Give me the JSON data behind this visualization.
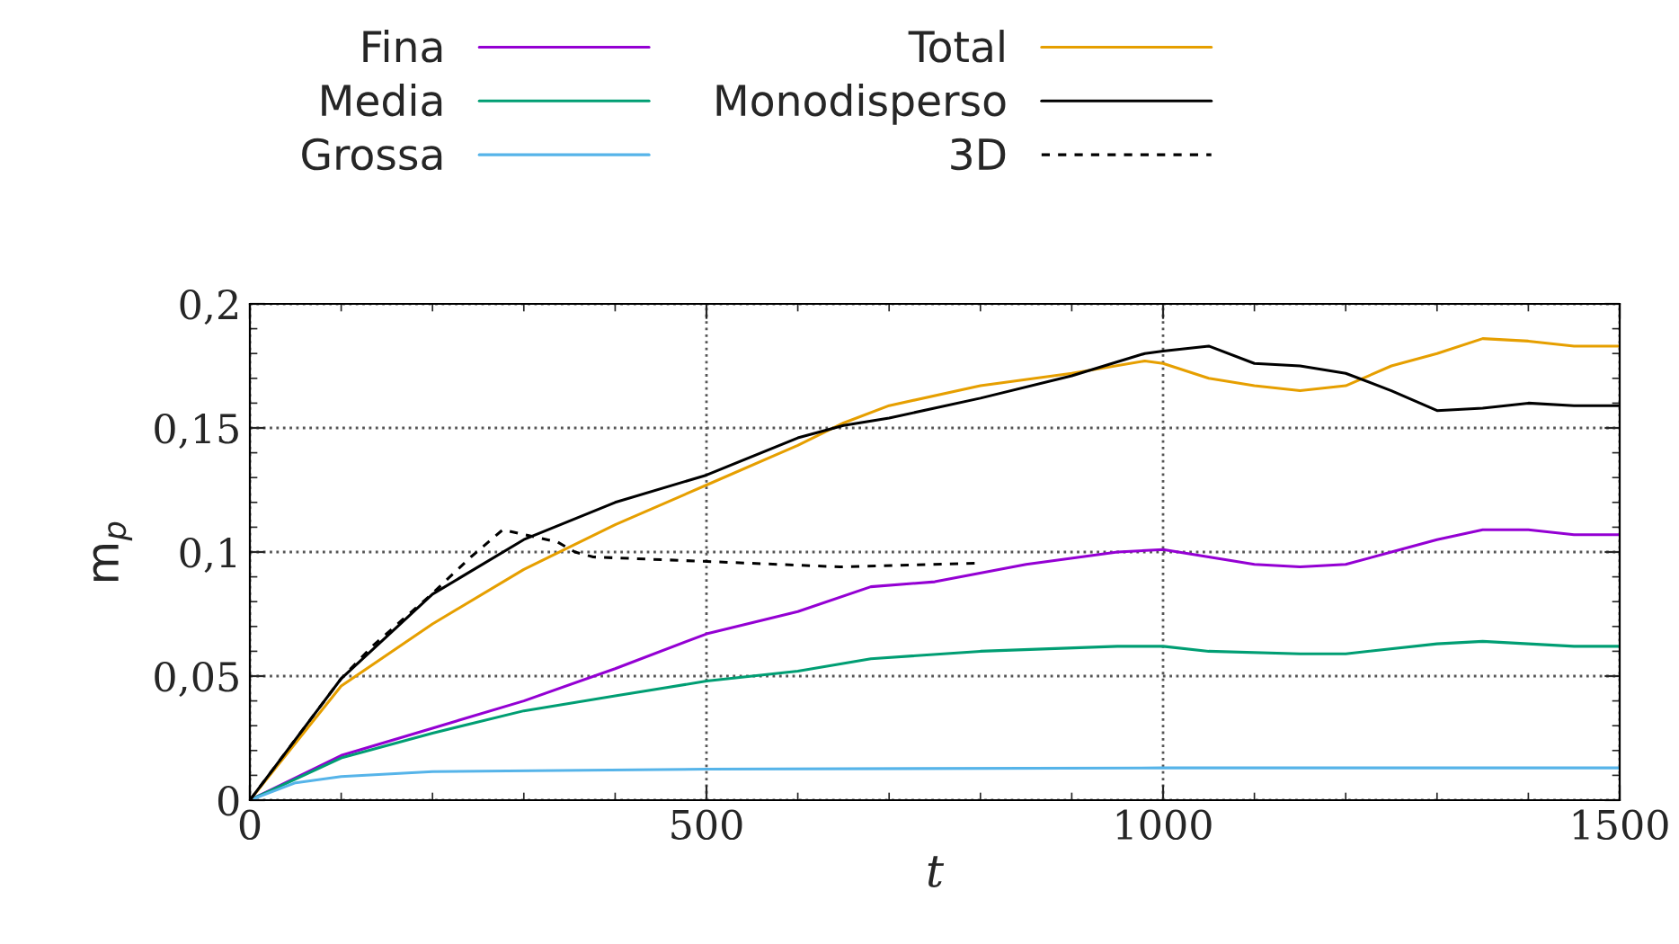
{
  "chart_data": {
    "type": "line",
    "xlabel": "t",
    "ylabel": "m$_{p}$",
    "xlim": [
      0,
      1500
    ],
    "xticks": [
      0,
      500,
      1000,
      1500
    ],
    "ylim": [
      0,
      0.2
    ],
    "yticks": [
      {
        "value": 0,
        "label": "0"
      },
      {
        "value": 0.05,
        "label": "0,05"
      },
      {
        "value": 0.1,
        "label": "0,1"
      },
      {
        "value": 0.15,
        "label": "0,15"
      },
      {
        "value": 0.2,
        "label": "0,2"
      }
    ],
    "grid": true,
    "legend": "top",
    "marker": "none",
    "series": [
      {
        "name": "Fina",
        "color": "#9400d3",
        "line_style": "solid",
        "x": [
          0,
          100,
          200,
          300,
          400,
          500,
          600,
          680,
          750,
          850,
          950,
          1000,
          1050,
          1100,
          1150,
          1200,
          1250,
          1300,
          1350,
          1400,
          1450,
          1500
        ],
        "values": [
          0,
          0.018,
          0.029,
          0.04,
          0.053,
          0.067,
          0.076,
          0.086,
          0.088,
          0.095,
          0.1,
          0.101,
          0.098,
          0.095,
          0.094,
          0.095,
          0.1,
          0.105,
          0.109,
          0.109,
          0.107,
          0.107
        ]
      },
      {
        "name": "Media",
        "color": "#009e73",
        "line_style": "solid",
        "x": [
          0,
          100,
          200,
          300,
          400,
          500,
          600,
          680,
          800,
          950,
          1000,
          1050,
          1150,
          1200,
          1300,
          1350,
          1450,
          1500
        ],
        "values": [
          0,
          0.017,
          0.027,
          0.036,
          0.042,
          0.048,
          0.052,
          0.057,
          0.06,
          0.062,
          0.062,
          0.06,
          0.059,
          0.059,
          0.063,
          0.064,
          0.062,
          0.062
        ]
      },
      {
        "name": "Grossa",
        "color": "#56b4e9",
        "line_style": "solid",
        "x": [
          0,
          50,
          100,
          200,
          500,
          1000,
          1500
        ],
        "values": [
          0,
          0.007,
          0.0095,
          0.0115,
          0.0125,
          0.013,
          0.013
        ]
      },
      {
        "name": "Total",
        "color": "#e69f00",
        "line_style": "solid",
        "x": [
          0,
          100,
          200,
          300,
          400,
          500,
          600,
          650,
          700,
          800,
          900,
          980,
          1000,
          1050,
          1100,
          1150,
          1200,
          1250,
          1300,
          1350,
          1400,
          1450,
          1500
        ],
        "values": [
          0,
          0.046,
          0.071,
          0.093,
          0.111,
          0.127,
          0.143,
          0.152,
          0.159,
          0.167,
          0.172,
          0.177,
          0.176,
          0.17,
          0.167,
          0.165,
          0.167,
          0.175,
          0.18,
          0.186,
          0.185,
          0.183,
          0.183
        ]
      },
      {
        "name": "Monodisperso",
        "color": "#000000",
        "line_style": "solid",
        "x": [
          0,
          100,
          200,
          300,
          400,
          500,
          600,
          650,
          700,
          800,
          900,
          980,
          1000,
          1050,
          1100,
          1150,
          1200,
          1250,
          1300,
          1350,
          1400,
          1450,
          1500
        ],
        "values": [
          0,
          0.049,
          0.083,
          0.105,
          0.12,
          0.131,
          0.146,
          0.151,
          0.154,
          0.162,
          0.171,
          0.18,
          0.181,
          0.183,
          0.176,
          0.175,
          0.172,
          0.165,
          0.157,
          0.158,
          0.16,
          0.159,
          0.159
        ]
      },
      {
        "name": "3D",
        "color": "#000000",
        "line_style": "dashed",
        "x": [
          0,
          100,
          134,
          199,
          242,
          277,
          337,
          356,
          376,
          514,
          646,
          795
        ],
        "values": [
          0,
          0.049,
          0.062,
          0.083,
          0.098,
          0.109,
          0.104,
          0.1,
          0.098,
          0.096,
          0.094,
          0.0955
        ]
      }
    ]
  }
}
